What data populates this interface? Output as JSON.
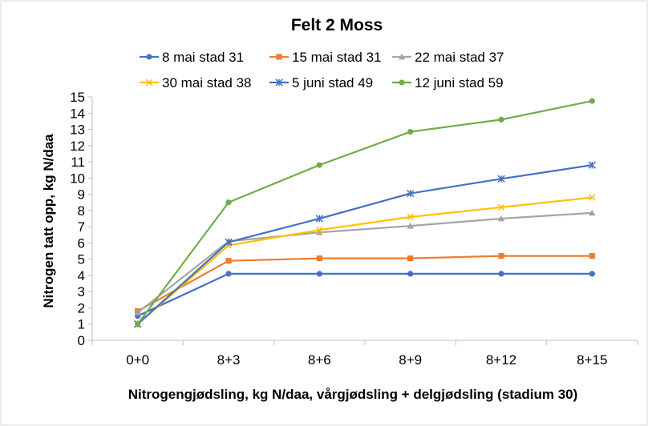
{
  "chart_data": {
    "type": "line",
    "title": "Felt 2 Moss",
    "xlabel": "Nitrogengjødsling, kg N/daa, vårgjødsling + delgjødsling (stadium 30)",
    "ylabel": "Nitrogen tatt opp, kg N/daa",
    "categories": [
      "0+0",
      "8+3",
      "8+6",
      "8+9",
      "8+12",
      "8+15"
    ],
    "ylim": [
      0,
      15
    ],
    "yticks": [
      0,
      1,
      2,
      3,
      4,
      5,
      6,
      7,
      8,
      9,
      10,
      11,
      12,
      13,
      14,
      15
    ],
    "grid": false,
    "legend_position": "top",
    "series": [
      {
        "name": "8 mai stad 31",
        "color": "#4472C4",
        "marker": "circle",
        "values": [
          1.5,
          4.1,
          4.1,
          4.1,
          4.1,
          4.1
        ]
      },
      {
        "name": "15 mai stad 31",
        "color": "#ED7D31",
        "marker": "square",
        "values": [
          1.8,
          4.9,
          5.05,
          5.05,
          5.2,
          5.2
        ]
      },
      {
        "name": "22 mai stad 37",
        "color": "#A5A5A5",
        "marker": "triangle",
        "values": [
          1.7,
          6.1,
          6.65,
          7.05,
          7.5,
          7.85
        ]
      },
      {
        "name": "30 mai stad 38",
        "color": "#FFC000",
        "marker": "x",
        "values": [
          1.0,
          5.85,
          6.8,
          7.6,
          8.2,
          8.8
        ]
      },
      {
        "name": "5 juni stad 49",
        "color": "#4472C4",
        "marker": "star",
        "values": [
          1.0,
          6.05,
          7.5,
          9.05,
          9.95,
          10.8
        ]
      },
      {
        "name": "12 juni stad 59",
        "color": "#70AD47",
        "marker": "circle",
        "values": [
          1.0,
          8.5,
          10.8,
          12.85,
          13.6,
          14.75
        ]
      }
    ]
  }
}
